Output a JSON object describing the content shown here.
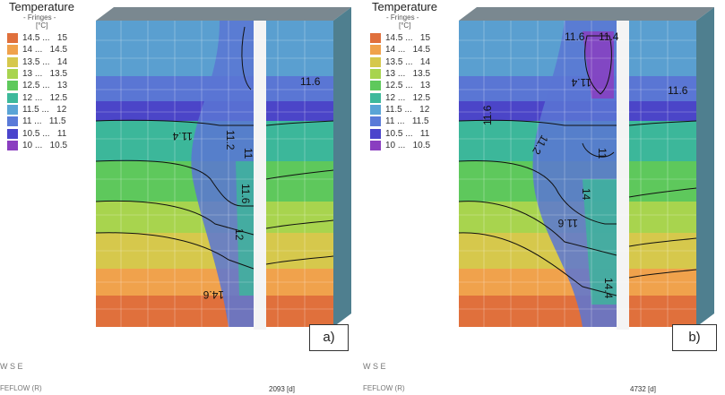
{
  "legend": {
    "title": "Temperature",
    "subtitle": "- Fringes -",
    "unit": "[°C]",
    "entries": [
      {
        "label": "14.5 ...   15",
        "color": "#e0703c"
      },
      {
        "label": "14 ...   14.5",
        "color": "#f0a24c"
      },
      {
        "label": "13.5 ...   14",
        "color": "#d6c84c"
      },
      {
        "label": "13 ...   13.5",
        "color": "#a8d44e"
      },
      {
        "label": "12.5 ...   13",
        "color": "#5ec95c"
      },
      {
        "label": "12 ...   12.5",
        "color": "#3db99b"
      },
      {
        "label": "11.5 ...   12",
        "color": "#5aa4d6"
      },
      {
        "label": "11 ...   11.5",
        "color": "#5a7ad8"
      },
      {
        "label": "10.5 ...   11",
        "color": "#4a44cc"
      },
      {
        "label": "10 ...   10.5",
        "color": "#8a3ec0"
      }
    ]
  },
  "panels": [
    {
      "tag": "a)",
      "time": "2093 [d]",
      "contour_labels": [
        "11.6",
        "11.2",
        "11.4",
        "11",
        "11.6",
        "12",
        "14.6"
      ]
    },
    {
      "tag": "b)",
      "time": "4732 [d]",
      "contour_labels": [
        "11.6",
        "11.4",
        "11.6",
        "11.6",
        "11.4",
        "11.2",
        "11",
        "14",
        "11.6",
        "14.4"
      ]
    }
  ],
  "footer": {
    "compass": "W   S   E",
    "brand": "FEFLOW (R)"
  }
}
